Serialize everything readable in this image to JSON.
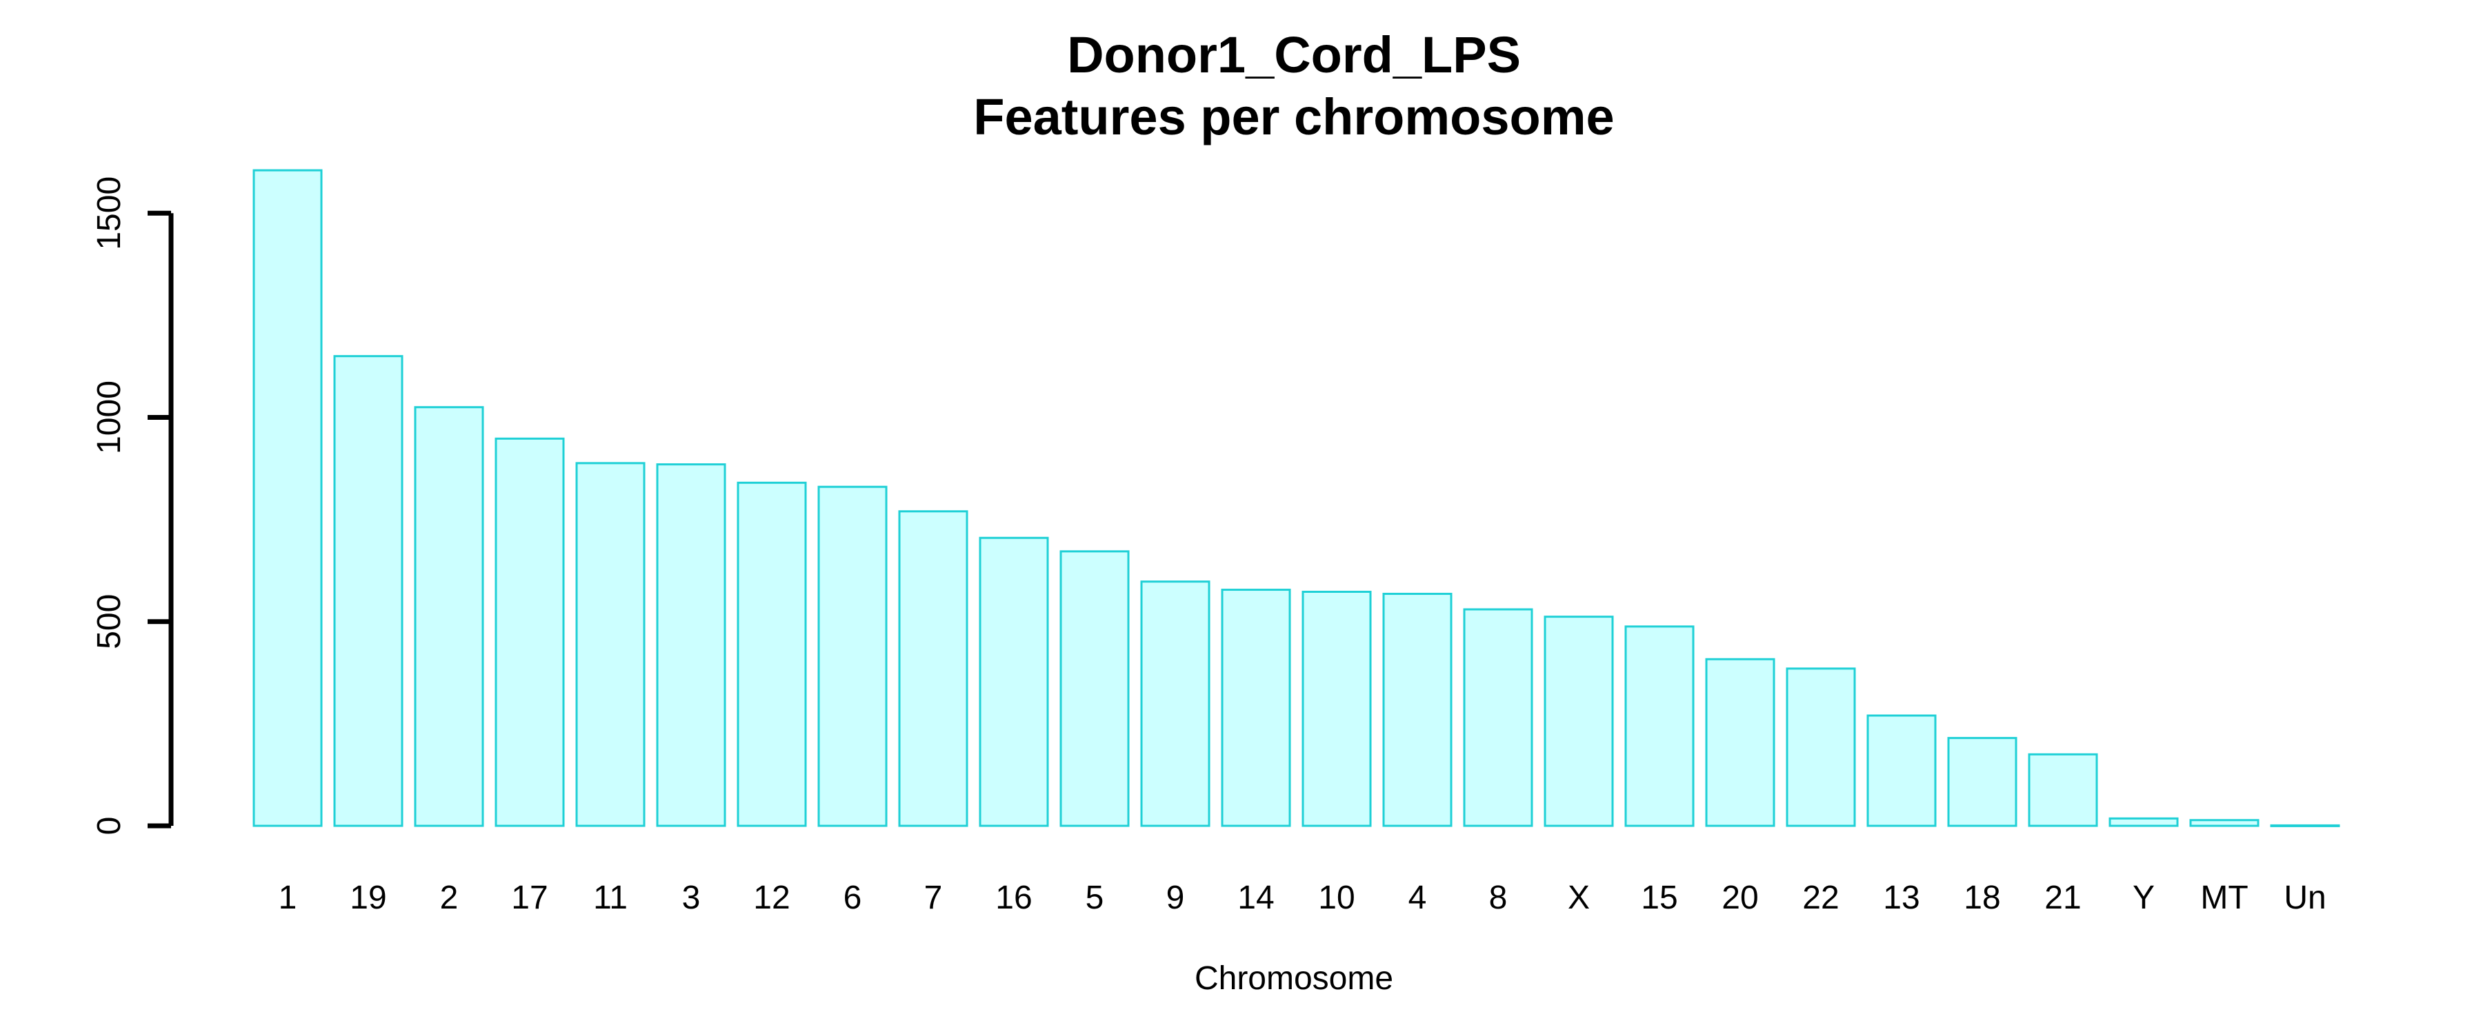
{
  "chart_data": {
    "type": "bar",
    "title": "Donor1_Cord_LPS",
    "subtitle": "Features per chromosome",
    "xlabel": "Chromosome",
    "ylabel": "",
    "ylim": [
      0,
      1600
    ],
    "yticks": [
      0,
      500,
      1000,
      1500
    ],
    "grid": false,
    "categories": [
      "1",
      "19",
      "2",
      "17",
      "11",
      "3",
      "12",
      "6",
      "7",
      "16",
      "5",
      "9",
      "14",
      "10",
      "4",
      "8",
      "X",
      "15",
      "20",
      "22",
      "13",
      "18",
      "21",
      "Y",
      "MT",
      "Un"
    ],
    "values": [
      1605,
      1150,
      1025,
      948,
      888,
      885,
      840,
      830,
      770,
      705,
      672,
      598,
      578,
      573,
      568,
      530,
      512,
      488,
      408,
      385,
      270,
      215,
      175,
      18,
      14,
      1
    ],
    "colors": {
      "bar_fill": "#ccffff",
      "bar_border": "#1fd0d6",
      "axis": "#000000"
    }
  }
}
